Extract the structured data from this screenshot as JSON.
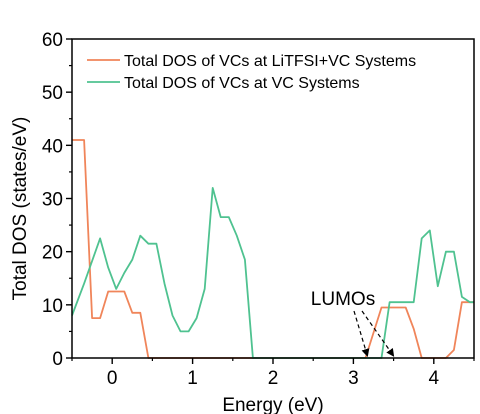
{
  "chart_data": {
    "type": "line",
    "xlabel": "Energy (eV)",
    "ylabel": "Total DOS (states/eV)",
    "xlim": [
      -0.5,
      4.5
    ],
    "ylim": [
      0,
      60
    ],
    "xticks": [
      0,
      1,
      2,
      3,
      4
    ],
    "yticks": [
      0,
      10,
      20,
      30,
      40,
      50,
      60
    ],
    "grid": false,
    "legend_position": "top-right",
    "series": [
      {
        "name": "Total DOS of VCs at LiTFSI+VC Systems",
        "color": "#f0855a",
        "x": [
          -0.5,
          -0.35,
          -0.25,
          -0.15,
          -0.05,
          0.05,
          0.15,
          0.25,
          0.35,
          0.45,
          1.75,
          3.15,
          3.35,
          3.65,
          3.75,
          3.85,
          4.15,
          4.25,
          4.35,
          4.5
        ],
        "y": [
          41,
          41,
          7.5,
          7.5,
          12.5,
          12.5,
          12.5,
          8.5,
          8.5,
          0,
          0,
          0,
          9.5,
          9.5,
          5.5,
          0,
          0,
          1.5,
          10.5,
          10.5
        ]
      },
      {
        "name": "Total DOS of VCs at VC Systems",
        "color": "#4fc290",
        "x": [
          -0.5,
          -0.35,
          -0.15,
          -0.05,
          0.05,
          0.15,
          0.25,
          0.35,
          0.45,
          0.55,
          0.65,
          0.75,
          0.85,
          0.95,
          1.05,
          1.15,
          1.25,
          1.35,
          1.45,
          1.55,
          1.65,
          1.75,
          3.35,
          3.45,
          3.55,
          3.75,
          3.85,
          3.95,
          4.05,
          4.15,
          4.25,
          4.35,
          4.45,
          4.5
        ],
        "y": [
          8,
          14,
          22.5,
          17,
          13,
          16,
          18.5,
          23,
          21.5,
          21.5,
          14,
          8,
          5,
          5,
          7.5,
          13,
          32,
          26.5,
          26.5,
          23,
          18.5,
          0,
          0,
          10.5,
          10.5,
          10.5,
          22.5,
          24,
          13.5,
          20,
          20,
          11.5,
          10.5,
          10.5
        ]
      }
    ],
    "annotations": [
      {
        "text": "LUMOs",
        "x": 3.05,
        "y": 11.5,
        "arrows_to": [
          [
            3.15,
            0
          ],
          [
            3.5,
            0
          ]
        ]
      }
    ]
  }
}
